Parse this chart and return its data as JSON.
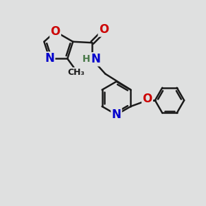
{
  "bg_color": "#dfe0e0",
  "bond_color": "#1a1a1a",
  "bond_width": 1.8,
  "atom_colors": {
    "C": "#1a1a1a",
    "N": "#0000cc",
    "O": "#cc0000",
    "H": "#4a7a4a"
  },
  "font_size": 12
}
